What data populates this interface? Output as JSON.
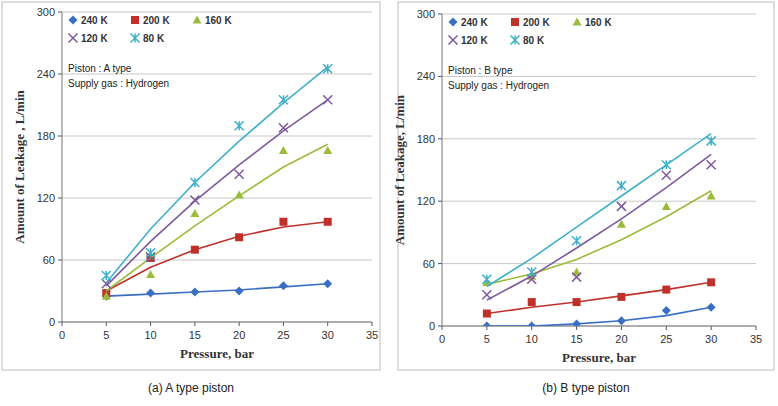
{
  "chart_data": [
    {
      "type": "scatter",
      "title": "(a) A type piston",
      "x_label": "Pressure, bar",
      "y_label": "Amount of Leakage , L/min",
      "annotations": [
        "Piston : A type",
        "Supply gas : Hydrogen"
      ],
      "x": [
        5,
        10,
        15,
        20,
        25,
        30
      ],
      "xlim": [
        0,
        35
      ],
      "xticks": [
        0,
        5,
        10,
        15,
        20,
        25,
        30,
        35
      ],
      "ylim": [
        0,
        300
      ],
      "yticks": [
        0,
        60,
        120,
        180,
        240,
        300
      ],
      "grid": true,
      "legend": "top-left",
      "series": [
        {
          "name": "240 K",
          "color": "#3a6fc4",
          "marker": "diamond",
          "values": [
            25,
            28,
            29,
            30,
            35,
            37
          ],
          "trend": [
            25,
            27,
            29,
            31,
            34,
            37
          ]
        },
        {
          "name": "200 K",
          "color": "#c0302a",
          "marker": "square",
          "values": [
            28,
            62,
            70,
            82,
            97,
            97
          ],
          "trend": [
            30,
            53,
            70,
            83,
            92,
            97
          ]
        },
        {
          "name": "160 K",
          "color": "#9bbb3b",
          "marker": "triangle",
          "values": [
            25,
            46,
            105,
            123,
            166,
            166
          ],
          "trend": [
            30,
            62,
            93,
            122,
            150,
            172
          ]
        },
        {
          "name": "120 K",
          "color": "#7d5a9e",
          "marker": "x",
          "values": [
            37,
            63,
            118,
            143,
            188,
            215
          ],
          "trend": [
            35,
            78,
            117,
            152,
            185,
            215
          ]
        },
        {
          "name": "80 K",
          "color": "#3fb0c8",
          "marker": "asterisk",
          "values": [
            45,
            67,
            135,
            190,
            215,
            245
          ],
          "trend": [
            38,
            90,
            135,
            175,
            212,
            247
          ]
        }
      ]
    },
    {
      "type": "scatter",
      "title": "(b) B type piston",
      "x_label": "Pressure, bar",
      "y_label": "Amount of Leakage, L/min",
      "annotations": [
        "Piston : B type",
        "Supply gas : Hydrogen"
      ],
      "x": [
        5,
        10,
        15,
        20,
        25,
        30
      ],
      "xlim": [
        0,
        35
      ],
      "xticks": [
        0,
        5,
        10,
        15,
        20,
        25,
        30,
        35
      ],
      "ylim": [
        0,
        300
      ],
      "yticks": [
        0,
        60,
        120,
        180,
        240,
        300
      ],
      "grid": true,
      "legend": "top-left",
      "series": [
        {
          "name": "240 K",
          "color": "#3a6fc4",
          "marker": "diamond",
          "values": [
            0,
            0,
            2,
            5,
            15,
            18
          ],
          "trend": [
            0,
            0,
            2,
            5,
            10,
            18
          ]
        },
        {
          "name": "200 K",
          "color": "#c0302a",
          "marker": "square",
          "values": [
            12,
            23,
            23,
            28,
            35,
            42
          ],
          "trend": [
            12,
            18,
            23,
            29,
            35,
            42
          ]
        },
        {
          "name": "160 K",
          "color": "#9bbb3b",
          "marker": "triangle",
          "values": [
            42,
            48,
            52,
            98,
            115,
            125
          ],
          "trend": [
            40,
            50,
            64,
            83,
            105,
            130
          ]
        },
        {
          "name": "120 K",
          "color": "#7d5a9e",
          "marker": "x",
          "values": [
            30,
            45,
            47,
            115,
            145,
            155
          ],
          "trend": [
            25,
            48,
            75,
            103,
            133,
            165
          ]
        },
        {
          "name": "80 K",
          "color": "#3fb0c8",
          "marker": "asterisk",
          "values": [
            45,
            52,
            82,
            135,
            155,
            178
          ],
          "trend": [
            38,
            65,
            95,
            125,
            155,
            185
          ]
        }
      ]
    }
  ]
}
